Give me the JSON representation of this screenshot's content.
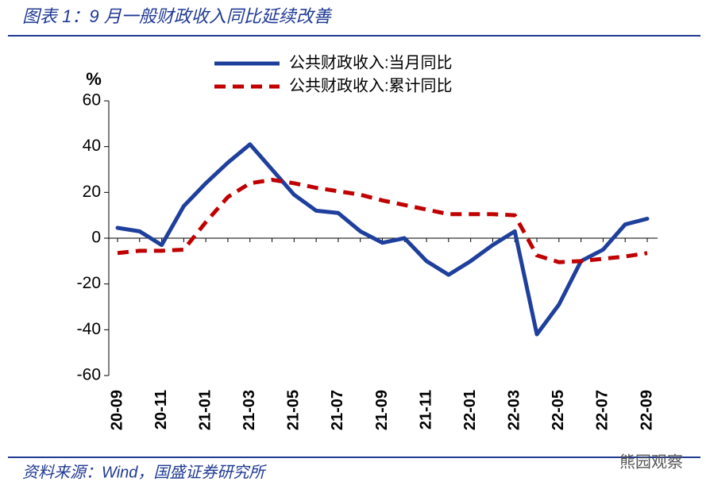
{
  "chart_data": {
    "type": "line",
    "title": "图表 1：9 月一般财政收入同比延续改善",
    "source": "资料来源：Wind，国盛证券研究所",
    "watermark": "熊园观察",
    "y_unit": "%",
    "categories": [
      "20-09",
      null,
      "20-11",
      null,
      "21-01",
      null,
      "21-03",
      null,
      "21-05",
      null,
      "21-07",
      null,
      "21-09",
      null,
      "21-11",
      null,
      "22-01",
      null,
      "22-03",
      null,
      "22-05",
      null,
      "22-07",
      null,
      "22-09"
    ],
    "series": [
      {
        "name": "公共财政收入:当月同比",
        "color": "#1f3f9c",
        "dash": false,
        "values": [
          4.5,
          3,
          -3,
          14,
          24,
          33,
          41,
          30,
          19,
          12,
          11,
          3,
          -2,
          0,
          -10,
          -16,
          -10,
          -3,
          3,
          -42,
          -29,
          -10,
          -5,
          6,
          8.5
        ]
      },
      {
        "name": "公共财政收入:累计同比",
        "color": "#c00000",
        "dash": true,
        "values": [
          -6.5,
          -5.5,
          -5.5,
          -5,
          7,
          18,
          24,
          25.5,
          24,
          22,
          20.5,
          19,
          16.5,
          14.5,
          12.5,
          10.5,
          10.5,
          10.5,
          10,
          -7.5,
          -10.5,
          -10,
          -9,
          -8,
          -6.5
        ]
      }
    ],
    "ylim": [
      -60,
      60
    ],
    "yticks": [
      -60,
      -40,
      -20,
      0,
      20,
      40,
      60
    ]
  }
}
